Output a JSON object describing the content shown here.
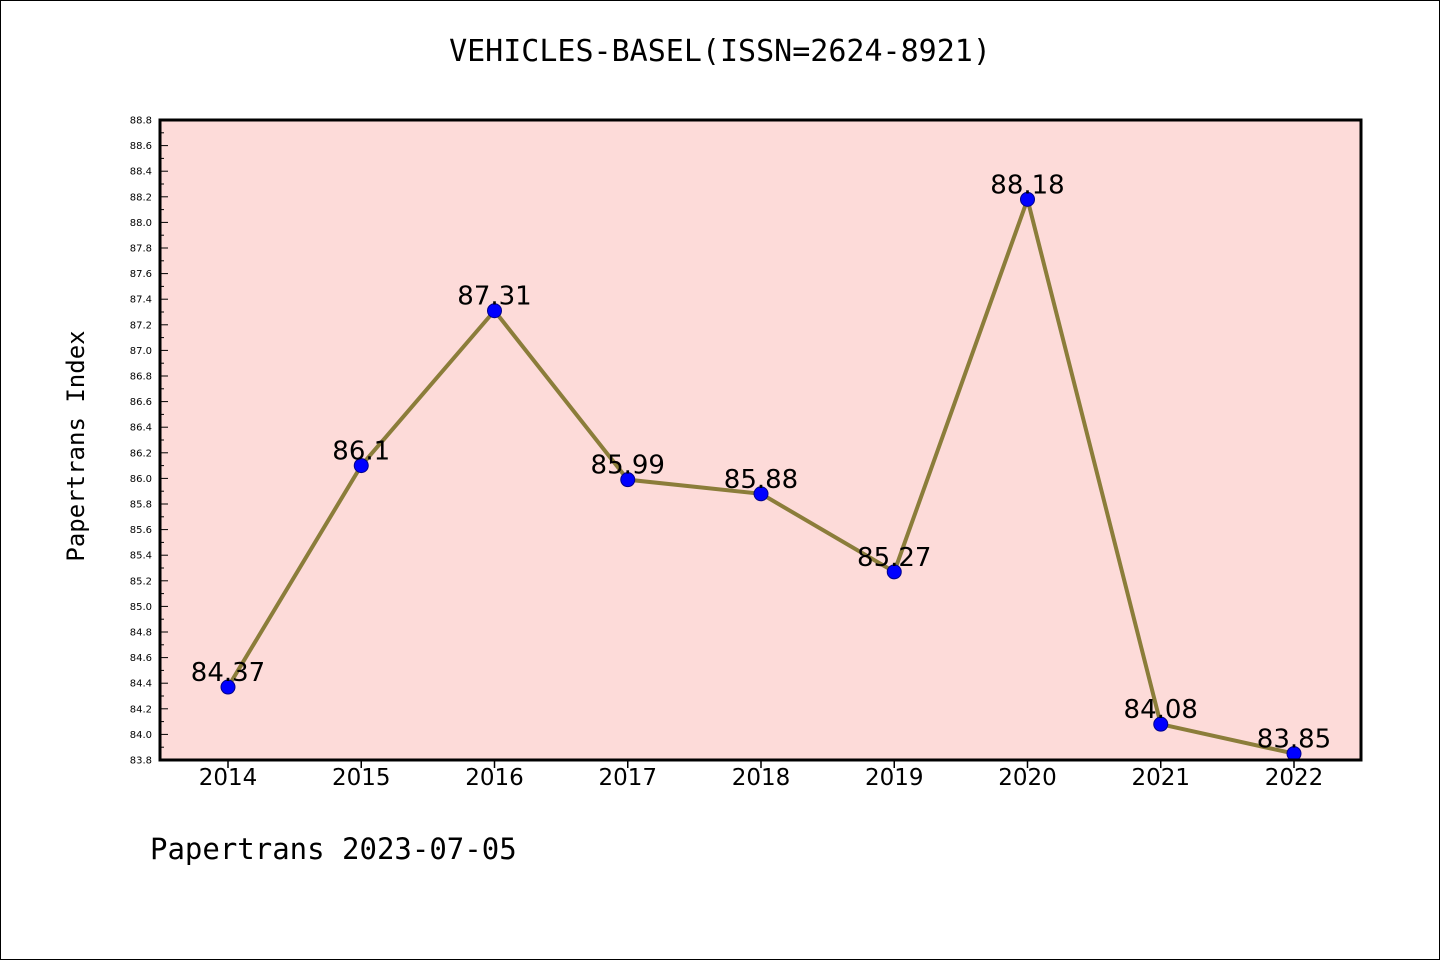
{
  "chart_data": {
    "type": "line",
    "title": "VEHICLES-BASEL(ISSN=2624-8921)",
    "xlabel": "",
    "ylabel": "Papertrans Index",
    "x": [
      "2014",
      "2015",
      "2016",
      "2017",
      "2018",
      "2019",
      "2020",
      "2021",
      "2022"
    ],
    "series": [
      {
        "values": [
          84.37,
          86.1,
          87.31,
          85.99,
          85.88,
          85.27,
          88.18,
          84.08,
          83.85
        ],
        "labels": [
          "84.37",
          "86.1",
          "87.31",
          "85.99",
          "85.88",
          "85.27",
          "88.18",
          "84.08",
          "83.85"
        ]
      }
    ],
    "ylim": [
      83.8,
      88.8
    ],
    "yticks": [
      "83.8",
      "84.0",
      "84.2",
      "84.4",
      "84.6",
      "84.8",
      "85.0",
      "85.2",
      "85.4",
      "85.6",
      "85.8",
      "86.0",
      "86.2",
      "86.4",
      "86.6",
      "86.8",
      "87.0",
      "87.2",
      "87.4",
      "87.6",
      "87.8",
      "88.0",
      "88.2",
      "88.4",
      "88.6",
      "88.8"
    ],
    "grid": false,
    "colors": {
      "plot_background": "#fddbd9",
      "line": "#8b7d3a",
      "marker": "#0000ff"
    }
  },
  "footer": "Papertrans 2023-07-05"
}
